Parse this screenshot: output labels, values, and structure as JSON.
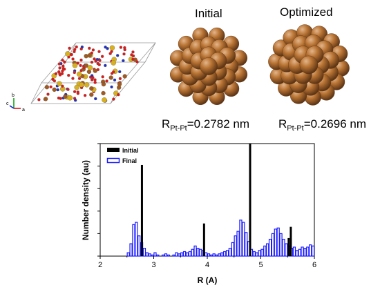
{
  "clusters": {
    "initial_title": "Initial",
    "optimized_title": "Optimized",
    "initial_r_prefix": "R",
    "initial_r_sub": "Pt-Pt",
    "initial_r_value": "=0.2782 nm",
    "optimized_r_prefix": "R",
    "optimized_r_sub": "Pt-Pt",
    "optimized_r_value": "=0.2696 nm",
    "atom_color": "#b87333"
  },
  "crystal": {
    "axis_a": "a",
    "axis_b": "b",
    "axis_c": "c"
  },
  "chart_data": {
    "type": "bar",
    "xlabel": "R (A)",
    "ylabel": "Number density (au)",
    "xlim": [
      2,
      6
    ],
    "ylim": [
      0,
      10
    ],
    "xticks": [
      "2",
      "3",
      "4",
      "5",
      "6"
    ],
    "grid": false,
    "legend_position": "top-left",
    "series": [
      {
        "name": "Initial",
        "style": "black spikes",
        "color": "#000000",
        "x": [
          2.78,
          3.94,
          4.8,
          5.52,
          5.56
        ],
        "values": [
          8.1,
          2.9,
          10.0,
          1.6,
          2.6
        ]
      },
      {
        "name": "Final",
        "style": "blue open histogram",
        "color": "#1a1aff",
        "bin_width": 0.05,
        "x": [
          2.5,
          2.55,
          2.6,
          2.65,
          2.7,
          2.75,
          2.8,
          2.85,
          2.9,
          2.95,
          3.0,
          3.05,
          3.1,
          3.15,
          3.2,
          3.25,
          3.3,
          3.35,
          3.4,
          3.45,
          3.5,
          3.55,
          3.6,
          3.65,
          3.7,
          3.75,
          3.8,
          3.85,
          3.9,
          3.95,
          4.0,
          4.05,
          4.1,
          4.15,
          4.2,
          4.25,
          4.3,
          4.35,
          4.4,
          4.45,
          4.5,
          4.55,
          4.6,
          4.65,
          4.7,
          4.75,
          4.8,
          4.85,
          4.9,
          4.95,
          5.0,
          5.05,
          5.1,
          5.15,
          5.2,
          5.25,
          5.3,
          5.35,
          5.4,
          5.45,
          5.5,
          5.55,
          5.6,
          5.65,
          5.7,
          5.75,
          5.8,
          5.85,
          5.9,
          5.95
        ],
        "values": [
          0.3,
          1.1,
          2.8,
          3.0,
          1.8,
          1.2,
          0.7,
          0.3,
          0.2,
          0.1,
          0.3,
          0.1,
          0.0,
          0.1,
          0.2,
          0.1,
          0.0,
          0.1,
          0.3,
          0.2,
          0.3,
          0.4,
          0.3,
          0.4,
          0.6,
          0.9,
          0.7,
          0.6,
          0.5,
          0.3,
          0.2,
          0.1,
          0.2,
          0.1,
          0.2,
          0.3,
          0.4,
          0.5,
          0.7,
          1.2,
          1.8,
          2.2,
          3.2,
          3.0,
          2.1,
          1.3,
          0.6,
          0.4,
          0.3,
          0.5,
          0.6,
          0.9,
          1.1,
          1.5,
          2.0,
          2.4,
          2.5,
          2.0,
          1.5,
          1.1,
          0.9,
          0.7,
          0.8,
          0.5,
          0.6,
          0.8,
          0.7,
          0.8,
          1.0,
          0.9
        ]
      }
    ]
  }
}
